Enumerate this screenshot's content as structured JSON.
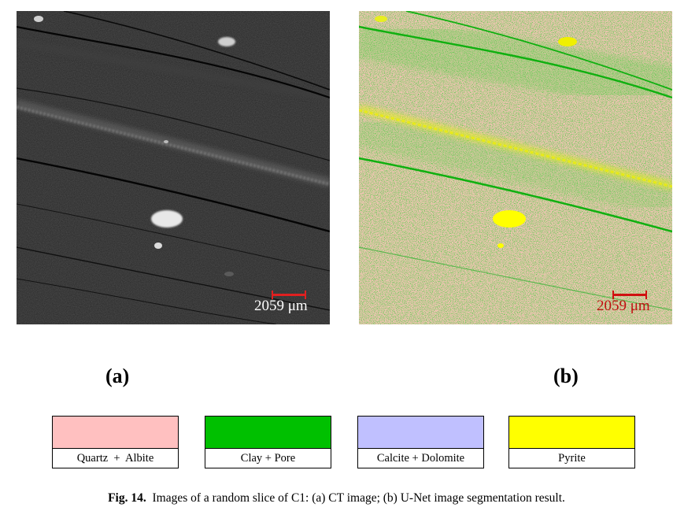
{
  "panel_a": {
    "scale_label": "2059 μm",
    "scale_bar_color": "#e02020",
    "scale_text_color": "#ffffff",
    "sub_label": "(a)"
  },
  "panel_b": {
    "scale_label": "2059 μm",
    "scale_bar_color": "#d01010",
    "scale_text_color": "#c01010",
    "sub_label": "(b)"
  },
  "legend": [
    {
      "label": "Quartz  +  Albite",
      "color": "#ffc0c0"
    },
    {
      "label": "Clay + Pore",
      "color": "#00c000"
    },
    {
      "label": "Calcite + Dolomite",
      "color": "#c0c0ff"
    },
    {
      "label": "Pyrite",
      "color": "#ffff00"
    }
  ],
  "caption": {
    "figure_number": "Fig. 14.",
    "text": "Images of a random slice of C1: (a) CT image; (b) U-Net image segmentation result."
  }
}
